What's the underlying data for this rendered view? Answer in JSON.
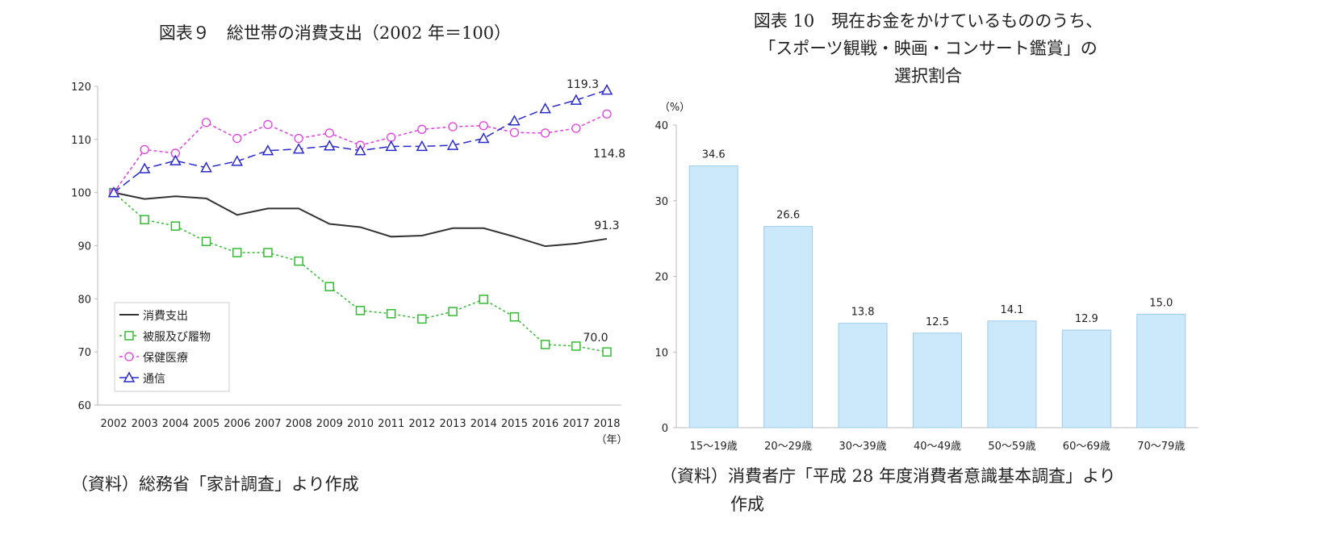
{
  "chart_data": [
    {
      "type": "line",
      "title": "図表９　総世帯の消費支出（2002 年＝100）",
      "x": [
        "2002",
        "2003",
        "2004",
        "2005",
        "2006",
        "2007",
        "2008",
        "2009",
        "2010",
        "2011",
        "2012",
        "2013",
        "2014",
        "2015",
        "2016",
        "2017",
        "2018"
      ],
      "x_unit_label": "（年）",
      "ylim": [
        60,
        120
      ],
      "yticks": [
        60,
        70,
        80,
        90,
        100,
        110,
        120
      ],
      "grid": false,
      "legend": "bottom-left",
      "series": [
        {
          "name": "消費支出",
          "color": "#333333",
          "style": "solid",
          "marker": "none",
          "end_label": "91.3",
          "values": [
            100,
            98.8,
            99.3,
            98.9,
            95.8,
            97.0,
            97.0,
            94.1,
            93.5,
            91.7,
            91.9,
            93.3,
            93.3,
            91.7,
            89.9,
            90.4,
            91.3
          ]
        },
        {
          "name": "被服及び履物",
          "color": "#33bb33",
          "style": "dotted",
          "marker": "square",
          "end_label": "70.0",
          "values": [
            100,
            94.9,
            93.7,
            90.8,
            88.7,
            88.7,
            87.1,
            82.3,
            77.8,
            77.2,
            76.2,
            77.6,
            79.9,
            76.6,
            71.4,
            71.1,
            70.0
          ]
        },
        {
          "name": "保健医療",
          "color": "#e040e0",
          "style": "dashed-short",
          "marker": "circle",
          "end_label": "114.8",
          "values": [
            100,
            108.1,
            107.4,
            113.2,
            110.2,
            112.8,
            110.2,
            111.2,
            108.9,
            110.4,
            111.9,
            112.4,
            112.6,
            111.3,
            111.2,
            112.1,
            114.8
          ]
        },
        {
          "name": "通信",
          "color": "#2a2acc",
          "style": "dashed-long",
          "marker": "triangle",
          "end_label": "119.3",
          "values": [
            100,
            104.5,
            106.0,
            104.7,
            105.9,
            107.9,
            108.2,
            108.8,
            107.9,
            108.7,
            108.7,
            108.9,
            110.2,
            113.5,
            115.8,
            117.4,
            119.3
          ]
        }
      ],
      "source": "（資料）総務省「家計調査」より作成"
    },
    {
      "type": "bar",
      "title_lines": [
        "図表 10　現在お金をかけているもののうち、",
        "「スポーツ観戦・映画・コンサート鑑賞」の",
        "選択割合"
      ],
      "ylabel": "（%）",
      "categories": [
        "15〜19歳",
        "20〜29歳",
        "30〜39歳",
        "40〜49歳",
        "50〜59歳",
        "60〜69歳",
        "70〜79歳"
      ],
      "values": [
        34.6,
        26.6,
        13.8,
        12.5,
        14.1,
        12.9,
        15.0
      ],
      "data_labels": [
        "34.6",
        "26.6",
        "13.8",
        "12.5",
        "14.1",
        "12.9",
        "15.0"
      ],
      "ylim": [
        0,
        40
      ],
      "yticks": [
        0,
        10,
        20,
        30,
        40
      ],
      "grid": false,
      "bar_color": "#cce9fb",
      "bar_border": "#9ccbe9",
      "source_lines": [
        "（資料）消費者庁「平成 28 年度消費者意識基本調査」より",
        "作成"
      ]
    }
  ]
}
